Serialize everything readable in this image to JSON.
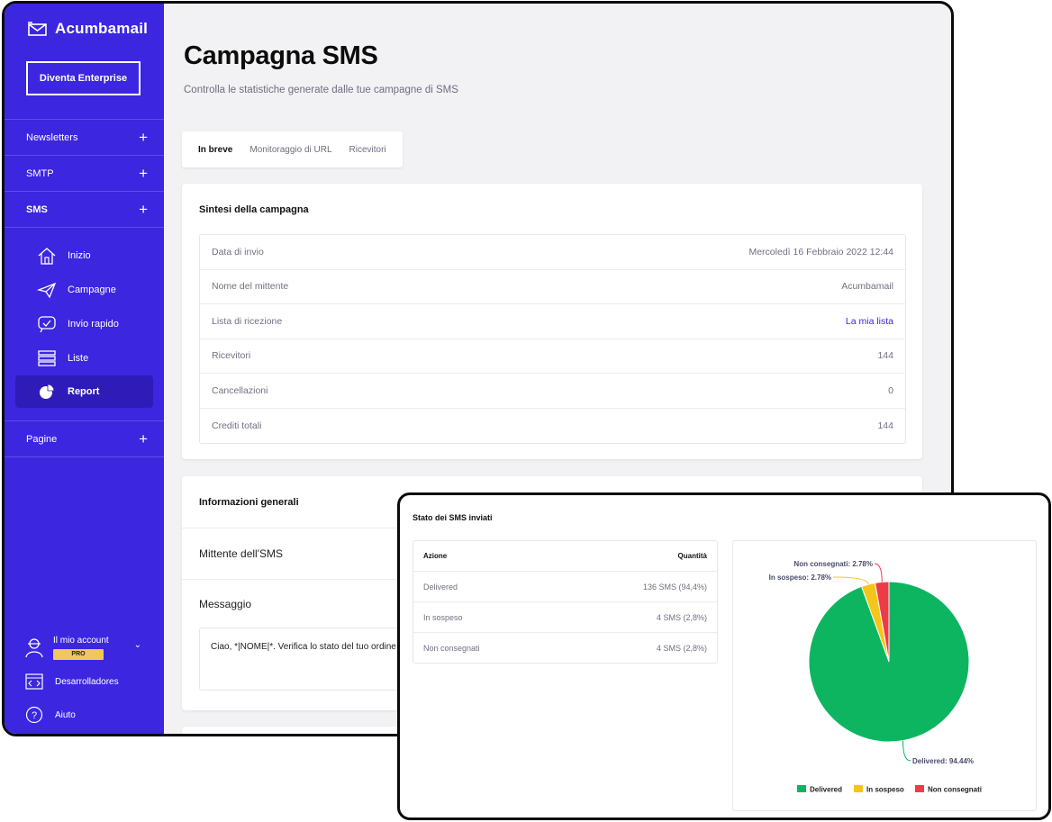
{
  "sidebar": {
    "brand": "Acumbamail",
    "enterprise_button": "Diventa Enterprise",
    "groups": [
      {
        "label": "Newsletters"
      },
      {
        "label": "SMTP"
      },
      {
        "label": "SMS"
      }
    ],
    "sms_items": [
      {
        "label": "Inizio",
        "icon": "home-icon"
      },
      {
        "label": "Campagne",
        "icon": "paper-plane-icon"
      },
      {
        "label": "Invio rapido",
        "icon": "chat-check-icon"
      },
      {
        "label": "Liste",
        "icon": "list-icon"
      },
      {
        "label": "Report",
        "icon": "pie-chart-icon",
        "active": true
      }
    ],
    "pages_group": "Pagine",
    "account": {
      "label": "Il mio account",
      "badge": "PRO"
    },
    "developers": "Desarrolladores",
    "help": "Aiuto"
  },
  "header": {
    "title": "Campagna SMS",
    "subtitle": "Controlla le statistiche generate dalle tue campagne di SMS"
  },
  "tabs": [
    {
      "label": "In breve",
      "active": true
    },
    {
      "label": "Monitoraggio di URL"
    },
    {
      "label": "Ricevitori"
    }
  ],
  "summary": {
    "title": "Sintesi della campagna",
    "rows": [
      {
        "label": "Data di invio",
        "value": "Mercoledì 16 Febbraio 2022 12:44"
      },
      {
        "label": "Nome del mittente",
        "value": "Acumbamail"
      },
      {
        "label": "Lista di ricezione",
        "value": "La mia lista",
        "link": true
      },
      {
        "label": "Ricevitori",
        "value": "144"
      },
      {
        "label": "Cancellazioni",
        "value": "0"
      },
      {
        "label": "Crediti totali",
        "value": "144"
      }
    ]
  },
  "general_info": {
    "title": "Informazioni generali",
    "sender_label": "Mittente dell'SMS",
    "message_label": "Messaggio",
    "message_text": "Ciao, *|NOME|*. Verifica lo stato del tuo ordine"
  },
  "sms_status": {
    "title": "Stato dei SMS inviati",
    "headers": {
      "action": "Azione",
      "quantity": "Quantità"
    },
    "rows": [
      {
        "action": "Delivered",
        "quantity": "136 SMS (94,4%)"
      },
      {
        "action": "In sospeso",
        "quantity": "4 SMS (2,8%)"
      },
      {
        "action": "Non consegnati",
        "quantity": "4 SMS (2,8%)"
      }
    ]
  },
  "colors": {
    "sidebar": "#3c26e0",
    "sidebar_active": "#2f1cb8",
    "delivered": "#0db561",
    "pending": "#f6c51b",
    "failed": "#ee3b48"
  },
  "chart_data": {
    "type": "pie",
    "title": "",
    "labels": [
      "Delivered",
      "In sospeso",
      "Non consegnati"
    ],
    "values": [
      94.44,
      2.78,
      2.78
    ],
    "value_labels": [
      "Delivered: 94.44%",
      "In sospeso: 2.78%",
      "Non consegnati: 2.78%"
    ],
    "colors": [
      "#0db561",
      "#f6c51b",
      "#ee3b48"
    ],
    "legend_position": "bottom"
  }
}
